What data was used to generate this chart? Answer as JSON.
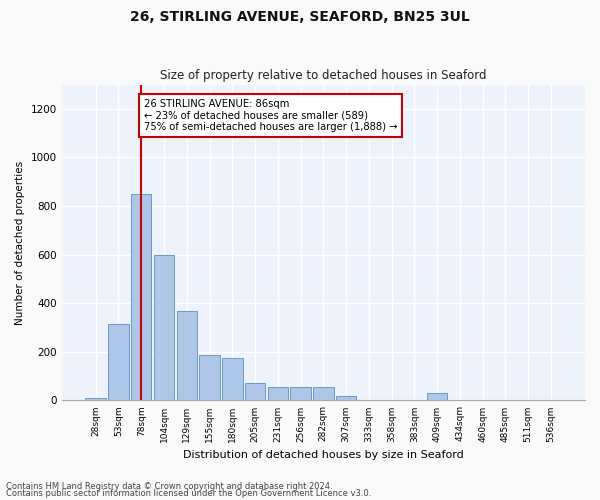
{
  "title1": "26, STIRLING AVENUE, SEAFORD, BN25 3UL",
  "title2": "Size of property relative to detached houses in Seaford",
  "xlabel": "Distribution of detached houses by size in Seaford",
  "ylabel": "Number of detached properties",
  "bin_labels": [
    "28sqm",
    "53sqm",
    "78sqm",
    "104sqm",
    "129sqm",
    "155sqm",
    "180sqm",
    "205sqm",
    "231sqm",
    "256sqm",
    "282sqm",
    "307sqm",
    "333sqm",
    "358sqm",
    "383sqm",
    "409sqm",
    "434sqm",
    "460sqm",
    "485sqm",
    "511sqm",
    "536sqm"
  ],
  "bar_values": [
    10,
    315,
    850,
    600,
    370,
    185,
    175,
    70,
    55,
    55,
    55,
    20,
    0,
    0,
    0,
    30,
    0,
    0,
    0,
    0,
    0
  ],
  "bar_color": "#aec7e8",
  "bar_edge_color": "#6699cc",
  "vline_x_index": 2,
  "vline_color": "#cc0000",
  "annotation_text": "26 STIRLING AVENUE: 86sqm\n← 23% of detached houses are smaller (589)\n75% of semi-detached houses are larger (1,888) →",
  "annotation_box_color": "#ffffff",
  "annotation_box_edge_color": "#cc0000",
  "ylim": [
    0,
    1300
  ],
  "yticks": [
    0,
    200,
    400,
    600,
    800,
    1000,
    1200
  ],
  "footnote1": "Contains HM Land Registry data © Crown copyright and database right 2024.",
  "footnote2": "Contains public sector information licensed under the Open Government Licence v3.0.",
  "bg_color": "#f9f9f9",
  "plot_bg_color": "#eef2fb"
}
